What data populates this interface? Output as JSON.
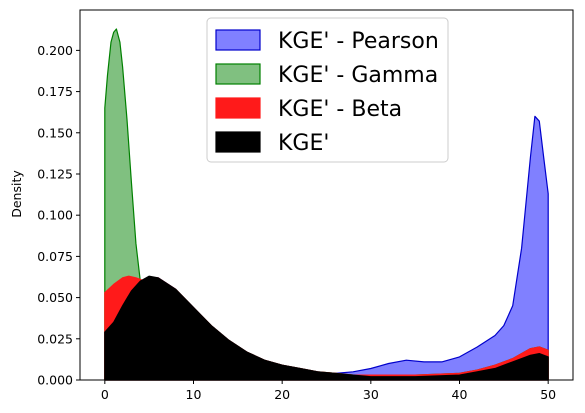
{
  "chart_data": {
    "type": "area",
    "title": "",
    "xlabel": "",
    "ylabel": "Density",
    "xlim": [
      -2.8,
      52.8
    ],
    "ylim": [
      0,
      0.2245
    ],
    "grid": false,
    "legend_placement": "top-center",
    "x_ticks": [
      0,
      10,
      20,
      30,
      40,
      50
    ],
    "y_ticks": [
      0.0,
      0.025,
      0.05,
      0.075,
      0.1,
      0.125,
      0.15,
      0.175,
      0.2
    ],
    "x_tick_labels": [
      "0",
      "10",
      "20",
      "30",
      "40",
      "50"
    ],
    "y_tick_labels": [
      "0.000",
      "0.025",
      "0.050",
      "0.075",
      "0.100",
      "0.125",
      "0.150",
      "0.175",
      "0.200"
    ],
    "series": [
      {
        "name": "KGE' - Pearson",
        "fill": "#8080ff",
        "edge": "#0000cc",
        "points": [
          [
            0,
            0.029
          ],
          [
            2,
            0.04
          ],
          [
            4,
            0.055
          ],
          [
            5,
            0.06
          ],
          [
            6,
            0.062
          ],
          [
            8,
            0.055
          ],
          [
            10,
            0.044
          ],
          [
            12,
            0.033
          ],
          [
            14,
            0.024
          ],
          [
            16,
            0.017
          ],
          [
            18,
            0.012
          ],
          [
            20,
            0.009
          ],
          [
            22,
            0.007
          ],
          [
            24,
            0.005
          ],
          [
            25,
            0.004
          ],
          [
            26,
            0.004
          ],
          [
            28,
            0.005
          ],
          [
            30,
            0.007
          ],
          [
            32,
            0.01
          ],
          [
            34,
            0.012
          ],
          [
            36,
            0.011
          ],
          [
            38,
            0.011
          ],
          [
            40,
            0.014
          ],
          [
            42,
            0.02
          ],
          [
            44,
            0.027
          ],
          [
            45,
            0.033
          ],
          [
            46,
            0.045
          ],
          [
            47,
            0.08
          ],
          [
            48,
            0.135
          ],
          [
            48.5,
            0.16
          ],
          [
            49,
            0.157
          ],
          [
            49.5,
            0.135
          ],
          [
            50,
            0.113
          ]
        ]
      },
      {
        "name": "KGE' - Gamma",
        "fill": "#80c080",
        "edge": "#008000",
        "points": [
          [
            0,
            0.165
          ],
          [
            0.3,
            0.185
          ],
          [
            0.7,
            0.205
          ],
          [
            1,
            0.211
          ],
          [
            1.3,
            0.213
          ],
          [
            1.7,
            0.205
          ],
          [
            2,
            0.19
          ],
          [
            2.5,
            0.158
          ],
          [
            3,
            0.12
          ],
          [
            3.5,
            0.083
          ],
          [
            4,
            0.06
          ],
          [
            4.5,
            0.045
          ],
          [
            5,
            0.045
          ],
          [
            6,
            0.058
          ],
          [
            8,
            0.055
          ],
          [
            10,
            0.044
          ],
          [
            12,
            0.033
          ],
          [
            14,
            0.024
          ],
          [
            16,
            0.017
          ],
          [
            18,
            0.012
          ],
          [
            20,
            0.009
          ],
          [
            22,
            0.007
          ],
          [
            24,
            0.005
          ],
          [
            26,
            0.004
          ],
          [
            28,
            0.003
          ],
          [
            30,
            0.003
          ],
          [
            35,
            0.003
          ],
          [
            40,
            0.004
          ],
          [
            42,
            0.006
          ],
          [
            44,
            0.009
          ],
          [
            46,
            0.013
          ],
          [
            48,
            0.019
          ],
          [
            49,
            0.02
          ],
          [
            50,
            0.018
          ]
        ]
      },
      {
        "name": "KGE' - Beta",
        "fill": "#ff1a1a",
        "edge": "#ff1a1a",
        "points": [
          [
            0,
            0.053
          ],
          [
            1,
            0.058
          ],
          [
            2,
            0.062
          ],
          [
            2.7,
            0.063
          ],
          [
            3.5,
            0.062
          ],
          [
            4.5,
            0.06
          ],
          [
            5.5,
            0.062
          ],
          [
            6,
            0.062
          ],
          [
            8,
            0.055
          ],
          [
            10,
            0.044
          ],
          [
            12,
            0.033
          ],
          [
            14,
            0.024
          ],
          [
            16,
            0.017
          ],
          [
            18,
            0.012
          ],
          [
            20,
            0.009
          ],
          [
            22,
            0.007
          ],
          [
            24,
            0.005
          ],
          [
            26,
            0.004
          ],
          [
            28,
            0.003
          ],
          [
            30,
            0.003
          ],
          [
            35,
            0.003
          ],
          [
            40,
            0.004
          ],
          [
            42,
            0.006
          ],
          [
            44,
            0.009
          ],
          [
            46,
            0.013
          ],
          [
            48,
            0.019
          ],
          [
            49,
            0.02
          ],
          [
            50,
            0.018
          ]
        ]
      },
      {
        "name": "KGE'",
        "fill": "#000000",
        "edge": "#000000",
        "points": [
          [
            0,
            0.029
          ],
          [
            1,
            0.035
          ],
          [
            2,
            0.045
          ],
          [
            3,
            0.054
          ],
          [
            4,
            0.06
          ],
          [
            5,
            0.063
          ],
          [
            6,
            0.062
          ],
          [
            8,
            0.055
          ],
          [
            10,
            0.044
          ],
          [
            12,
            0.033
          ],
          [
            14,
            0.024
          ],
          [
            16,
            0.017
          ],
          [
            18,
            0.012
          ],
          [
            20,
            0.009
          ],
          [
            22,
            0.007
          ],
          [
            24,
            0.005
          ],
          [
            26,
            0.004
          ],
          [
            28,
            0.003
          ],
          [
            30,
            0.002
          ],
          [
            35,
            0.002
          ],
          [
            40,
            0.003
          ],
          [
            42,
            0.005
          ],
          [
            44,
            0.007
          ],
          [
            46,
            0.011
          ],
          [
            48,
            0.015
          ],
          [
            49,
            0.016
          ],
          [
            50,
            0.014
          ]
        ]
      }
    ]
  }
}
